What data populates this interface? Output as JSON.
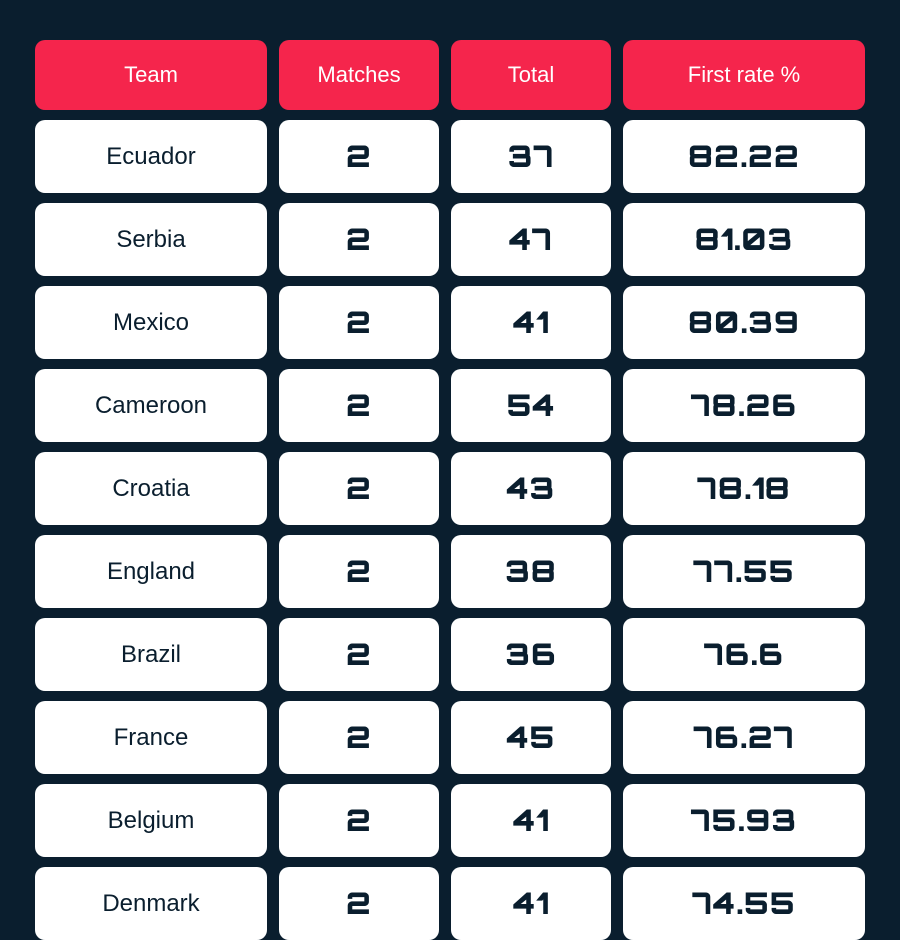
{
  "table": {
    "headers": {
      "team": "Team",
      "matches": "Matches",
      "total": "Total",
      "rate": "First rate %"
    },
    "rows": [
      {
        "team": "Ecuador",
        "matches": "2",
        "total": "37",
        "rate": "82.22"
      },
      {
        "team": "Serbia",
        "matches": "2",
        "total": "47",
        "rate": "81.03"
      },
      {
        "team": "Mexico",
        "matches": "2",
        "total": "41",
        "rate": "80.39"
      },
      {
        "team": "Cameroon",
        "matches": "2",
        "total": "54",
        "rate": "78.26"
      },
      {
        "team": "Croatia",
        "matches": "2",
        "total": "43",
        "rate": "78.18"
      },
      {
        "team": "England",
        "matches": "2",
        "total": "38",
        "rate": "77.55"
      },
      {
        "team": "Brazil",
        "matches": "2",
        "total": "36",
        "rate": "76.6"
      },
      {
        "team": "France",
        "matches": "2",
        "total": "45",
        "rate": "76.27"
      },
      {
        "team": "Belgium",
        "matches": "2",
        "total": "41",
        "rate": "75.93"
      },
      {
        "team": "Denmark",
        "matches": "2",
        "total": "41",
        "rate": "74.55"
      }
    ],
    "colors": {
      "background": "#0a1e2e",
      "header_bg": "#f5254c",
      "header_text": "#ffffff",
      "cell_bg": "#ffffff",
      "cell_text": "#0a1e2e"
    },
    "styling": {
      "border_radius": 10,
      "row_gap": 10,
      "col_gap": 12,
      "header_fontsize": 22,
      "team_fontsize": 24,
      "value_fontsize": 30,
      "column_widths": {
        "team": 232,
        "matches": 160,
        "total": 160,
        "rate": "flex"
      }
    }
  }
}
